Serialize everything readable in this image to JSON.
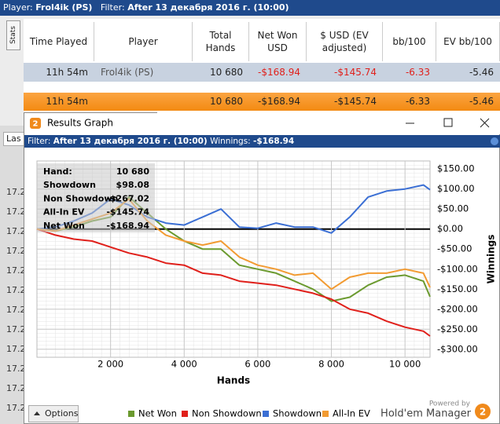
{
  "header": {
    "player_label": "Player:",
    "player": "Frol4ik (PS)",
    "filter_label": "Filter:",
    "filter": "After 13 декабря 2016 г. (10:00)"
  },
  "side_tab": "Stats",
  "table": {
    "columns": [
      "Time Played",
      "Player",
      "Total Hands",
      "Net Won USD",
      "$ USD (EV adjusted)",
      "bb/100",
      "EV bb/100"
    ],
    "rows": [
      [
        "11h 54m",
        "Frol4ik (PS)",
        "10 680",
        "-$168.94",
        "-$145.74",
        "-6.33",
        "-5.46"
      ],
      [
        "11h 54m",
        "",
        "10 680",
        "-$168.94",
        "-$145.74",
        "-6.33",
        "-5.46"
      ]
    ]
  },
  "background": {
    "dropdown": "Las",
    "rows": [
      "17.2",
      "17.2",
      "17.2",
      "17.2",
      "17.2",
      "17.2",
      "17.2",
      "17.2",
      "17.2",
      "17.2",
      "17.2",
      "17.2"
    ]
  },
  "window": {
    "title": "Results Graph",
    "icon": "2",
    "filter_label": "Filter:",
    "filter": "After 13 декабря 2016 г. (10:00)",
    "winnings_label": "Winnings:",
    "winnings": "-$168.94",
    "options": "Options",
    "powered_by": "Powered by",
    "brand": "Hold'em Manager"
  },
  "chart_data": {
    "type": "line",
    "x_label": "Hands",
    "y_label": "Winnings",
    "x": [
      0,
      500,
      1000,
      1500,
      2000,
      2500,
      3000,
      3500,
      4000,
      4500,
      5000,
      5500,
      6000,
      6500,
      7000,
      7500,
      8000,
      8500,
      9000,
      9500,
      10000,
      10500,
      10680
    ],
    "series": [
      {
        "name": "Net Won",
        "color": "#6b9a2f",
        "values": [
          0,
          -5,
          5,
          20,
          30,
          80,
          40,
          0,
          -30,
          -50,
          -50,
          -90,
          -100,
          -110,
          -130,
          -150,
          -180,
          -170,
          -140,
          -120,
          -115,
          -130,
          -168.94
        ]
      },
      {
        "name": "Non Showdown",
        "color": "#e0201b",
        "values": [
          0,
          -15,
          -25,
          -30,
          -45,
          -60,
          -70,
          -85,
          -90,
          -110,
          -115,
          -130,
          -135,
          -140,
          -150,
          -160,
          -175,
          -200,
          -210,
          -230,
          -245,
          -255,
          -267.02
        ]
      },
      {
        "name": "Showdown",
        "color": "#3b6fd4",
        "values": [
          0,
          5,
          20,
          40,
          75,
          60,
          30,
          15,
          10,
          30,
          50,
          5,
          2,
          15,
          5,
          5,
          -10,
          30,
          80,
          95,
          100,
          110,
          98.08
        ]
      },
      {
        "name": "All-In EV",
        "color": "#f29b32",
        "values": [
          0,
          -5,
          10,
          25,
          40,
          75,
          20,
          -15,
          -30,
          -40,
          -30,
          -70,
          -90,
          -100,
          -115,
          -110,
          -150,
          -120,
          -110,
          -110,
          -100,
          -110,
          -145.74
        ]
      }
    ],
    "xlim": [
      0,
      10680
    ],
    "ylim": [
      -320,
      170
    ],
    "xticks": [
      {
        "value": 2000,
        "label": "2 000"
      },
      {
        "value": 4000,
        "label": "4 000"
      },
      {
        "value": 6000,
        "label": "6 000"
      },
      {
        "value": 8000,
        "label": "8 000"
      },
      {
        "value": 10000,
        "label": "10 000"
      }
    ],
    "yticks": [
      {
        "value": 150,
        "label": "$150.00"
      },
      {
        "value": 100,
        "label": "$100.00"
      },
      {
        "value": 50,
        "label": "$50.00"
      },
      {
        "value": 0,
        "label": "$0.00"
      },
      {
        "value": -50,
        "label": "-$50.00"
      },
      {
        "value": -100,
        "label": "-$100.00"
      },
      {
        "value": -150,
        "label": "-$150.00"
      },
      {
        "value": -200,
        "label": "-$200.00"
      },
      {
        "value": -250,
        "label": "-$250.00"
      },
      {
        "value": -300,
        "label": "-$300.00"
      }
    ],
    "grid": true,
    "summary": [
      {
        "label": "Hand:",
        "value": "10 680"
      },
      {
        "label": "Showdown",
        "value": "$98.08"
      },
      {
        "label": "Non Showdown",
        "value": "-$267.02"
      },
      {
        "label": "All-In EV",
        "value": "-$145.74"
      },
      {
        "label": "Net Won",
        "value": "-$168.94"
      }
    ]
  }
}
